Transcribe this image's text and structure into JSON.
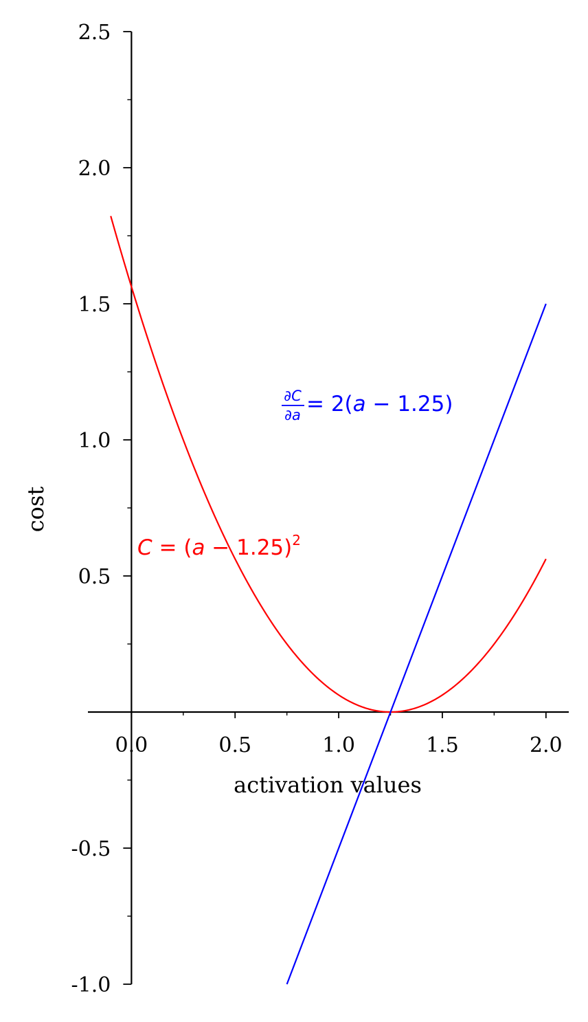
{
  "chart_data": {
    "type": "line",
    "xlabel": "activation values",
    "ylabel": "cost",
    "xlim": [
      -0.21,
      2.11
    ],
    "ylim": [
      -1.0,
      2.5
    ],
    "x_major_ticks": [
      0.0,
      0.5,
      1.0,
      1.5,
      2.0
    ],
    "x_tick_labels": [
      "0.0",
      "0.5",
      "1.0",
      "1.5",
      "2.0"
    ],
    "y_major_ticks": [
      -1.0,
      -0.5,
      0.5,
      1.0,
      1.5,
      2.0,
      2.5
    ],
    "y_tick_labels": [
      "-1.0",
      "-0.5",
      "0.5",
      "1.0",
      "1.5",
      "2.0",
      "2.5"
    ],
    "grid": false,
    "series": [
      {
        "function": "(a - 1.25)^2",
        "x_range": [
          -0.1,
          2.0
        ],
        "color": "#ff0000",
        "label_parts": {
          "lhs": "C",
          "eq": " = (",
          "var": "a",
          "rest": " − 1.25)",
          "sup": "2"
        }
      },
      {
        "function": "2(a - 1.25)",
        "x_range": [
          0.75,
          2.0
        ],
        "color": "#0000ff",
        "label_parts": {
          "num": "∂C",
          "den": "∂a",
          "eq": " = 2(",
          "var": "a",
          "rest": " − 1.25)"
        }
      }
    ]
  }
}
